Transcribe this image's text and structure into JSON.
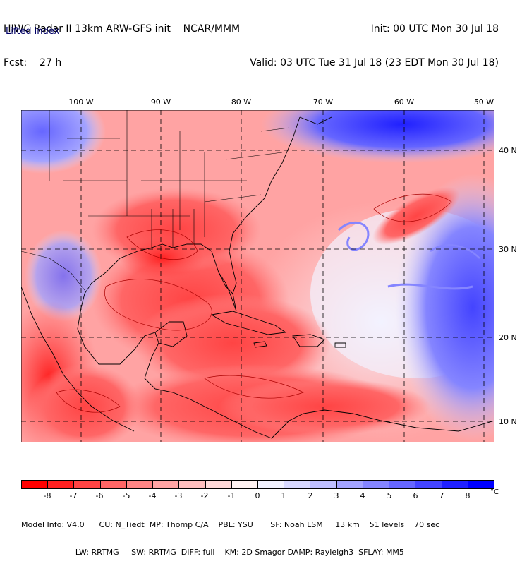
{
  "header": {
    "left_line1": "HIWC Radar II 13km ARW-GFS init    NCAR/MMM",
    "left_line2": "Fcst:    27 h",
    "right_line1": "Init: 00 UTC Mon 30 Jul 18",
    "right_line2": "Valid: 03 UTC Tue 31 Jul 18 (23 EDT Mon 30 Jul 18)"
  },
  "field_name": "Lifted index",
  "longitude_labels": [
    "100 W",
    "90 W",
    "80 W",
    "70 W",
    "60 W",
    "50 W"
  ],
  "latitude_labels": [
    "40 N",
    "30 N",
    "20 N",
    "10 N"
  ],
  "colorbar": {
    "ticks": [
      "-8",
      "-7",
      "-6",
      "-5",
      "-4",
      "-3",
      "-2",
      "-1",
      "0",
      "1",
      "2",
      "3",
      "4",
      "5",
      "6",
      "7",
      "8"
    ],
    "unit": "°C",
    "colors": [
      "#ff0000",
      "#ff2020",
      "#ff4444",
      "#ff6666",
      "#ff8585",
      "#ffa3a3",
      "#ffbfbf",
      "#ffd9d9",
      "#fff2f2",
      "#f2f2ff",
      "#d9d9ff",
      "#bfbfff",
      "#a3a3ff",
      "#8585ff",
      "#6666ff",
      "#4444ff",
      "#2020ff",
      "#0000ff"
    ]
  },
  "footer": {
    "line1": "Model Info: V4.0      CU: N_Tiedt  MP: Thomp C/A    PBL: YSU       SF: Noah LSM     13 km    51 levels    70 sec",
    "line2": "                      LW: RRTMG     SW: RRTMG  DIFF: full    KM: 2D Smagor DAMP: Rayleigh3  SFLAY: MM5"
  },
  "colors": {
    "unstable": "#ff6666",
    "stable": "#4444ff",
    "land_border": "#000000",
    "contour": "#aa0000"
  }
}
